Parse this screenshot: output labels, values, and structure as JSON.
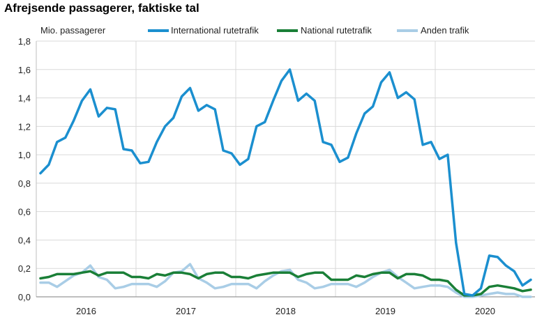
{
  "title": "Afrejsende passagerer, faktiske tal",
  "chart_data": {
    "type": "line",
    "ylabel": "Mio. passagerer",
    "ylim": [
      0,
      1.8
    ],
    "yticks": [
      "0,0",
      "0,2",
      "0,4",
      "0,6",
      "0,8",
      "1,0",
      "1,2",
      "1,4",
      "1,6",
      "1,8"
    ],
    "year_labels": [
      "2016",
      "2017",
      "2018",
      "2019",
      "2020"
    ],
    "grid": "horizontal and vertical year separators",
    "legend_position": "top",
    "x_start": "2016-01",
    "series": [
      {
        "name": "International rutetrafik",
        "color": "#1b8fcf",
        "values": [
          0.87,
          0.93,
          1.09,
          1.12,
          1.24,
          1.38,
          1.46,
          1.27,
          1.33,
          1.32,
          1.04,
          1.03,
          0.94,
          0.95,
          1.09,
          1.2,
          1.26,
          1.41,
          1.47,
          1.31,
          1.35,
          1.32,
          1.03,
          1.01,
          0.93,
          0.97,
          1.2,
          1.23,
          1.38,
          1.52,
          1.6,
          1.38,
          1.43,
          1.38,
          1.09,
          1.07,
          0.95,
          0.98,
          1.15,
          1.29,
          1.34,
          1.51,
          1.58,
          1.4,
          1.44,
          1.39,
          1.07,
          1.09,
          0.97,
          1.0,
          0.38,
          0.02,
          0.01,
          0.06,
          0.29,
          0.28,
          0.22,
          0.18,
          0.08,
          0.12
        ]
      },
      {
        "name": "National rutetrafik",
        "color": "#1a7f37",
        "values": [
          0.13,
          0.14,
          0.16,
          0.16,
          0.16,
          0.17,
          0.18,
          0.15,
          0.17,
          0.17,
          0.17,
          0.14,
          0.14,
          0.13,
          0.16,
          0.15,
          0.17,
          0.17,
          0.16,
          0.13,
          0.16,
          0.17,
          0.17,
          0.14,
          0.14,
          0.13,
          0.15,
          0.16,
          0.17,
          0.17,
          0.17,
          0.14,
          0.16,
          0.17,
          0.17,
          0.12,
          0.12,
          0.12,
          0.15,
          0.14,
          0.16,
          0.17,
          0.17,
          0.13,
          0.16,
          0.16,
          0.15,
          0.12,
          0.12,
          0.11,
          0.05,
          0.01,
          0.01,
          0.02,
          0.07,
          0.08,
          0.07,
          0.06,
          0.04,
          0.05
        ]
      },
      {
        "name": "Anden trafik",
        "color": "#a9cde6",
        "values": [
          0.1,
          0.1,
          0.07,
          0.11,
          0.15,
          0.17,
          0.22,
          0.14,
          0.12,
          0.06,
          0.07,
          0.09,
          0.09,
          0.09,
          0.07,
          0.11,
          0.17,
          0.18,
          0.23,
          0.13,
          0.1,
          0.06,
          0.07,
          0.09,
          0.09,
          0.09,
          0.06,
          0.11,
          0.15,
          0.18,
          0.19,
          0.12,
          0.1,
          0.06,
          0.07,
          0.09,
          0.09,
          0.09,
          0.07,
          0.1,
          0.14,
          0.17,
          0.19,
          0.14,
          0.1,
          0.06,
          0.07,
          0.08,
          0.08,
          0.07,
          0.03,
          0.0,
          0.0,
          0.01,
          0.02,
          0.03,
          0.02,
          0.02,
          0.0,
          0.0
        ]
      }
    ]
  }
}
